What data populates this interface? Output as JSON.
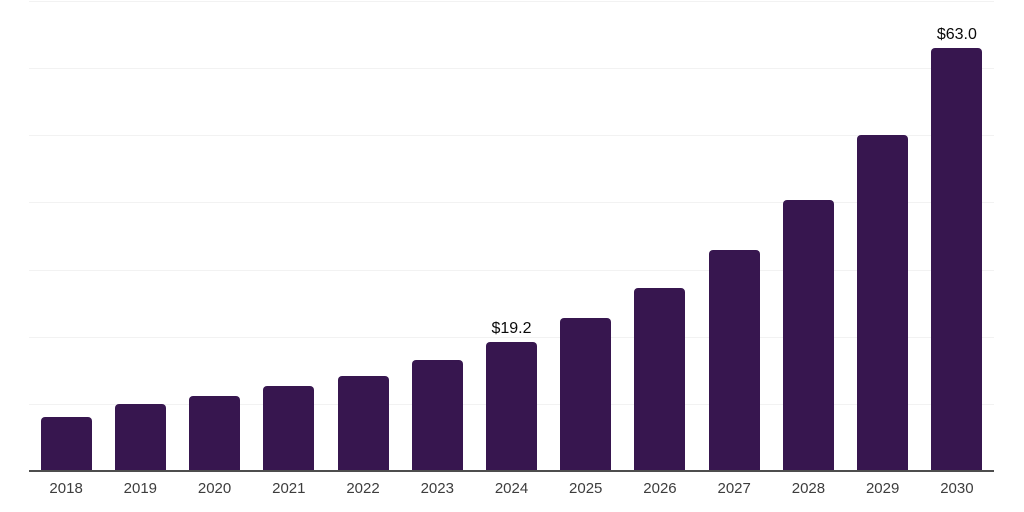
{
  "chart_data": {
    "type": "bar",
    "title": "",
    "xlabel": "",
    "ylabel": "",
    "categories": [
      "2018",
      "2019",
      "2020",
      "2021",
      "2022",
      "2023",
      "2024",
      "2025",
      "2026",
      "2027",
      "2028",
      "2029",
      "2030"
    ],
    "values": [
      8.0,
      10.0,
      11.1,
      12.6,
      14.2,
      16.5,
      19.2,
      22.8,
      27.2,
      32.9,
      40.4,
      50.1,
      63.0
    ],
    "data_labels": [
      null,
      null,
      null,
      null,
      null,
      null,
      "$19.2",
      null,
      null,
      null,
      null,
      null,
      "$63.0"
    ],
    "unit_prefix": "$",
    "ylim": [
      0,
      70
    ],
    "gridline_step": 10,
    "grid": true,
    "legend": "none",
    "colors": {
      "bar": "#37164F",
      "axis_line": "#4d4d4d",
      "gridline": "#f2f2f2",
      "tick_label": "#3d3d3d",
      "data_label": "#0a0a0a",
      "background": "#ffffff"
    }
  }
}
